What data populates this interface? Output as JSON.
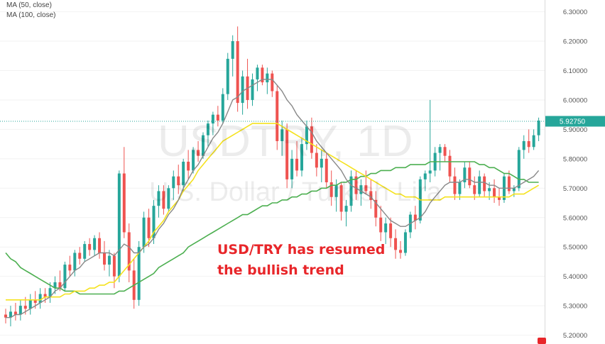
{
  "legend": [
    {
      "label": "MA (50, close)",
      "color": "#f5e21e"
    },
    {
      "label": "MA (100, close)",
      "color": "#4caf50"
    }
  ],
  "watermark": {
    "symbol": "USDTRY, 1D",
    "description": "U.S. Dollar / Turkish Lira"
  },
  "annotation": {
    "line1": "USD/TRY has resumed",
    "line2": "the bullish trend"
  },
  "chart_data": {
    "type": "candlestick",
    "ylim": [
      5.17,
      6.34
    ],
    "y_ticks": [
      "5.20000",
      "5.30000",
      "5.40000",
      "5.50000",
      "5.60000",
      "5.70000",
      "5.80000",
      "5.90000",
      "6.00000",
      "6.10000",
      "6.20000",
      "6.30000"
    ],
    "last_price_label": "5.92750",
    "last_price": 5.9275,
    "colors": {
      "up": "#26a69a",
      "down": "#ef5350",
      "ma_short": "#888888",
      "ma50": "#f5e21e",
      "ma100": "#4caf50",
      "price_line": "#26a69a"
    },
    "candles": [
      [
        5.27,
        5.29,
        5.24,
        5.26
      ],
      [
        5.26,
        5.3,
        5.23,
        5.28
      ],
      [
        5.28,
        5.31,
        5.25,
        5.27
      ],
      [
        5.27,
        5.32,
        5.25,
        5.3
      ],
      [
        5.3,
        5.33,
        5.27,
        5.29
      ],
      [
        5.29,
        5.34,
        5.27,
        5.32
      ],
      [
        5.32,
        5.35,
        5.29,
        5.31
      ],
      [
        5.31,
        5.36,
        5.29,
        5.34
      ],
      [
        5.34,
        5.36,
        5.31,
        5.33
      ],
      [
        5.33,
        5.38,
        5.31,
        5.36
      ],
      [
        5.36,
        5.4,
        5.34,
        5.38
      ],
      [
        5.38,
        5.42,
        5.35,
        5.36
      ],
      [
        5.36,
        5.45,
        5.35,
        5.44
      ],
      [
        5.44,
        5.47,
        5.4,
        5.42
      ],
      [
        5.42,
        5.49,
        5.4,
        5.48
      ],
      [
        5.48,
        5.5,
        5.44,
        5.46
      ],
      [
        5.46,
        5.52,
        5.45,
        5.51
      ],
      [
        5.51,
        5.53,
        5.47,
        5.49
      ],
      [
        5.49,
        5.54,
        5.47,
        5.53
      ],
      [
        5.53,
        5.55,
        5.46,
        5.48
      ],
      [
        5.48,
        5.52,
        5.42,
        5.44
      ],
      [
        5.44,
        5.49,
        5.4,
        5.47
      ],
      [
        5.47,
        5.48,
        5.36,
        5.4
      ],
      [
        5.4,
        5.76,
        5.38,
        5.75
      ],
      [
        5.75,
        5.84,
        5.53,
        5.55
      ],
      [
        5.55,
        5.58,
        5.38,
        5.42
      ],
      [
        5.42,
        5.46,
        5.29,
        5.32
      ],
      [
        5.32,
        5.52,
        5.3,
        5.5
      ],
      [
        5.5,
        5.62,
        5.48,
        5.6
      ],
      [
        5.6,
        5.63,
        5.5,
        5.53
      ],
      [
        5.53,
        5.66,
        5.51,
        5.64
      ],
      [
        5.64,
        5.71,
        5.6,
        5.69
      ],
      [
        5.69,
        5.71,
        5.61,
        5.63
      ],
      [
        5.63,
        5.71,
        5.62,
        5.7
      ],
      [
        5.7,
        5.76,
        5.66,
        5.74
      ],
      [
        5.74,
        5.78,
        5.68,
        5.71
      ],
      [
        5.71,
        5.8,
        5.69,
        5.79
      ],
      [
        5.79,
        5.83,
        5.73,
        5.76
      ],
      [
        5.76,
        5.84,
        5.75,
        5.83
      ],
      [
        5.83,
        5.86,
        5.79,
        5.81
      ],
      [
        5.81,
        5.89,
        5.8,
        5.88
      ],
      [
        5.88,
        5.93,
        5.84,
        5.92
      ],
      [
        5.92,
        5.96,
        5.88,
        5.95
      ],
      [
        5.95,
        5.98,
        5.91,
        5.93
      ],
      [
        5.93,
        6.04,
        5.92,
        6.02
      ],
      [
        6.02,
        6.16,
        6.0,
        6.14
      ],
      [
        6.14,
        6.22,
        6.08,
        6.2
      ],
      [
        6.2,
        6.25,
        5.96,
        5.99
      ],
      [
        5.99,
        6.1,
        5.95,
        6.08
      ],
      [
        6.08,
        6.14,
        5.97,
        6.0
      ],
      [
        6.0,
        6.09,
        5.98,
        6.07
      ],
      [
        6.07,
        6.12,
        6.03,
        6.11
      ],
      [
        6.11,
        6.12,
        6.05,
        6.06
      ],
      [
        6.06,
        6.11,
        6.02,
        6.09
      ],
      [
        6.09,
        6.1,
        6.01,
        6.03
      ],
      [
        6.03,
        6.05,
        5.83,
        5.86
      ],
      [
        5.86,
        5.93,
        5.81,
        5.9
      ],
      [
        5.9,
        5.92,
        5.7,
        5.73
      ],
      [
        5.73,
        5.83,
        5.7,
        5.8
      ],
      [
        5.8,
        5.86,
        5.74,
        5.76
      ],
      [
        5.76,
        5.87,
        5.74,
        5.85
      ],
      [
        5.85,
        5.93,
        5.83,
        5.91
      ],
      [
        5.91,
        5.94,
        5.8,
        5.82
      ],
      [
        5.82,
        5.85,
        5.74,
        5.77
      ],
      [
        5.77,
        5.83,
        5.72,
        5.8
      ],
      [
        5.8,
        5.82,
        5.7,
        5.72
      ],
      [
        5.72,
        5.76,
        5.64,
        5.67
      ],
      [
        5.67,
        5.73,
        5.62,
        5.71
      ],
      [
        5.71,
        5.72,
        5.59,
        5.62
      ],
      [
        5.62,
        5.66,
        5.57,
        5.64
      ],
      [
        5.64,
        5.76,
        5.62,
        5.74
      ],
      [
        5.74,
        5.76,
        5.66,
        5.68
      ],
      [
        5.68,
        5.73,
        5.64,
        5.71
      ],
      [
        5.71,
        5.76,
        5.68,
        5.69
      ],
      [
        5.69,
        5.73,
        5.63,
        5.66
      ],
      [
        5.66,
        5.69,
        5.57,
        5.6
      ],
      [
        5.6,
        5.64,
        5.52,
        5.55
      ],
      [
        5.55,
        5.6,
        5.51,
        5.58
      ],
      [
        5.58,
        5.6,
        5.5,
        5.53
      ],
      [
        5.53,
        5.56,
        5.46,
        5.49
      ],
      [
        5.49,
        5.52,
        5.46,
        5.48
      ],
      [
        5.48,
        5.56,
        5.47,
        5.55
      ],
      [
        5.55,
        5.62,
        5.53,
        5.61
      ],
      [
        5.61,
        5.64,
        5.56,
        5.59
      ],
      [
        5.59,
        5.74,
        5.58,
        5.73
      ],
      [
        5.73,
        5.76,
        5.69,
        5.75
      ],
      [
        5.75,
        6.0,
        5.72,
        5.76
      ],
      [
        5.76,
        5.84,
        5.74,
        5.82
      ],
      [
        5.82,
        5.85,
        5.76,
        5.84
      ],
      [
        5.84,
        5.85,
        5.79,
        5.81
      ],
      [
        5.81,
        5.83,
        5.72,
        5.74
      ],
      [
        5.74,
        5.77,
        5.66,
        5.68
      ],
      [
        5.68,
        5.73,
        5.66,
        5.72
      ],
      [
        5.72,
        5.79,
        5.7,
        5.77
      ],
      [
        5.77,
        5.79,
        5.7,
        5.71
      ],
      [
        5.71,
        5.74,
        5.66,
        5.68
      ],
      [
        5.68,
        5.76,
        5.67,
        5.74
      ],
      [
        5.74,
        5.75,
        5.67,
        5.69
      ],
      [
        5.69,
        5.72,
        5.66,
        5.7
      ],
      [
        5.7,
        5.73,
        5.65,
        5.67
      ],
      [
        5.67,
        5.7,
        5.64,
        5.66
      ],
      [
        5.66,
        5.75,
        5.65,
        5.74
      ],
      [
        5.74,
        5.76,
        5.68,
        5.69
      ],
      [
        5.69,
        5.71,
        5.67,
        5.7
      ],
      [
        5.7,
        5.84,
        5.69,
        5.83
      ],
      [
        5.83,
        5.88,
        5.8,
        5.86
      ],
      [
        5.86,
        5.9,
        5.82,
        5.84
      ],
      [
        5.84,
        5.9,
        5.83,
        5.88
      ],
      [
        5.88,
        5.94,
        5.86,
        5.93
      ]
    ],
    "ma_short": [
      5.26,
      5.26,
      5.27,
      5.27,
      5.28,
      5.29,
      5.3,
      5.31,
      5.32,
      5.33,
      5.35,
      5.36,
      5.38,
      5.4,
      5.42,
      5.43,
      5.45,
      5.46,
      5.47,
      5.48,
      5.48,
      5.48,
      5.47,
      5.49,
      5.51,
      5.5,
      5.48,
      5.48,
      5.5,
      5.51,
      5.53,
      5.56,
      5.58,
      5.61,
      5.63,
      5.66,
      5.7,
      5.73,
      5.76,
      5.78,
      5.81,
      5.84,
      5.87,
      5.89,
      5.92,
      5.96,
      6.0,
      6.01,
      6.03,
      6.04,
      6.05,
      6.06,
      6.07,
      6.07,
      6.07,
      6.05,
      6.03,
      6.0,
      5.98,
      5.95,
      5.93,
      5.91,
      5.89,
      5.86,
      5.84,
      5.82,
      5.8,
      5.78,
      5.76,
      5.73,
      5.71,
      5.7,
      5.69,
      5.68,
      5.67,
      5.65,
      5.63,
      5.61,
      5.59,
      5.58,
      5.57,
      5.57,
      5.58,
      5.59,
      5.6,
      5.62,
      5.65,
      5.67,
      5.69,
      5.71,
      5.72,
      5.72,
      5.72,
      5.73,
      5.73,
      5.72,
      5.72,
      5.72,
      5.71,
      5.71,
      5.7,
      5.7,
      5.7,
      5.7,
      5.71,
      5.72,
      5.73,
      5.74,
      5.76
    ],
    "ma50": [
      5.32,
      5.32,
      5.32,
      5.32,
      5.32,
      5.32,
      5.32,
      5.32,
      5.33,
      5.33,
      5.33,
      5.33,
      5.34,
      5.34,
      5.35,
      5.35,
      5.35,
      5.36,
      5.36,
      5.37,
      5.37,
      5.38,
      5.38,
      5.4,
      5.42,
      5.44,
      5.46,
      5.48,
      5.5,
      5.52,
      5.55,
      5.57,
      5.59,
      5.62,
      5.64,
      5.66,
      5.69,
      5.71,
      5.73,
      5.76,
      5.78,
      5.8,
      5.82,
      5.84,
      5.86,
      5.87,
      5.88,
      5.89,
      5.9,
      5.91,
      5.92,
      5.92,
      5.92,
      5.92,
      5.92,
      5.92,
      5.91,
      5.9,
      5.89,
      5.88,
      5.87,
      5.86,
      5.85,
      5.84,
      5.83,
      5.82,
      5.81,
      5.8,
      5.79,
      5.78,
      5.77,
      5.76,
      5.75,
      5.74,
      5.73,
      5.72,
      5.71,
      5.7,
      5.69,
      5.68,
      5.68,
      5.67,
      5.67,
      5.67,
      5.66,
      5.66,
      5.66,
      5.66,
      5.66,
      5.67,
      5.67,
      5.67,
      5.67,
      5.67,
      5.67,
      5.67,
      5.67,
      5.67,
      5.67,
      5.67,
      5.67,
      5.67,
      5.67,
      5.68,
      5.68,
      5.68,
      5.69,
      5.7,
      5.71
    ],
    "ma100": [
      5.48,
      5.46,
      5.45,
      5.43,
      5.42,
      5.41,
      5.4,
      5.39,
      5.38,
      5.37,
      5.36,
      5.36,
      5.35,
      5.35,
      5.35,
      5.34,
      5.34,
      5.34,
      5.34,
      5.34,
      5.34,
      5.34,
      5.34,
      5.35,
      5.35,
      5.36,
      5.37,
      5.38,
      5.39,
      5.4,
      5.41,
      5.43,
      5.44,
      5.45,
      5.46,
      5.47,
      5.48,
      5.5,
      5.51,
      5.52,
      5.53,
      5.54,
      5.55,
      5.56,
      5.57,
      5.58,
      5.59,
      5.6,
      5.61,
      5.61,
      5.62,
      5.63,
      5.64,
      5.64,
      5.65,
      5.65,
      5.66,
      5.66,
      5.67,
      5.67,
      5.68,
      5.68,
      5.69,
      5.69,
      5.7,
      5.7,
      5.71,
      5.71,
      5.72,
      5.72,
      5.73,
      5.73,
      5.74,
      5.74,
      5.75,
      5.75,
      5.76,
      5.76,
      5.76,
      5.77,
      5.77,
      5.77,
      5.78,
      5.78,
      5.78,
      5.78,
      5.79,
      5.79,
      5.79,
      5.79,
      5.79,
      5.79,
      5.79,
      5.79,
      5.79,
      5.79,
      5.78,
      5.78,
      5.77,
      5.77,
      5.76,
      5.75,
      5.75,
      5.74,
      5.73,
      5.73,
      5.72,
      5.72,
      5.72
    ]
  }
}
